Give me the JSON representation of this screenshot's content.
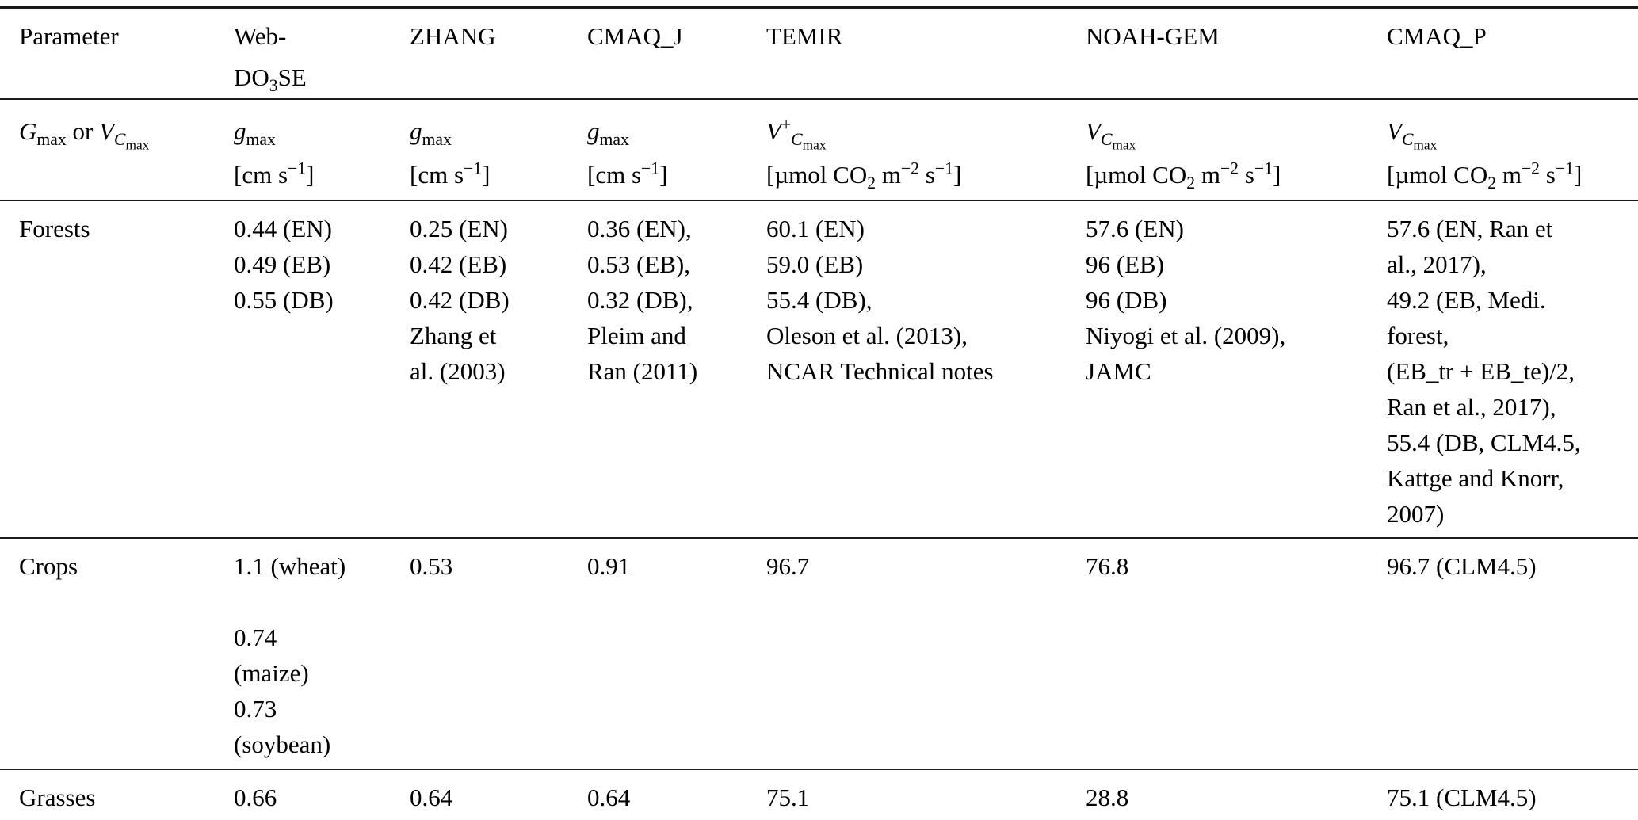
{
  "colors": {
    "text": "#000000",
    "background": "#ffffff",
    "rule": "#1a1a1a"
  },
  "table": {
    "header": [
      "Parameter",
      "Web-\nDO_{3}SE",
      "ZHANG",
      "CMAQ_J",
      "TEMIR",
      "NOAH-GEM",
      "CMAQ_P"
    ],
    "units": [
      "/{G}_{max} or /{V}_{/{C}_{max}}",
      "/{g}_{max}\n[cm s^{−1}]",
      "/{g}_{max}\n[cm s^{−1}]",
      "/{g}_{max}\n[cm s^{−1}]",
      "/{V}^{+}_{/{C}_{max}}\n[µmol CO_{2} m^{−2} s^{−1}]",
      "/{V}_{/{C}_{max}}\n[µmol CO_{2} m^{−2} s^{−1}]",
      "/{V}_{/{C}_{max}}\n[µmol CO_{2} m^{−2} s^{−1}]"
    ],
    "rows": [
      {
        "label": "Forests",
        "cells": [
          "0.44 (EN)\n0.49 (EB)\n0.55 (DB)",
          "0.25 (EN)\n0.42 (EB)\n0.42 (DB)\nZhang et\nal. (2003)",
          "0.36 (EN),\n0.53 (EB),\n0.32 (DB),\nPleim and\nRan (2011)",
          "60.1 (EN)\n59.0 (EB)\n55.4 (DB),\nOleson et al. (2013),\nNCAR Technical notes",
          "57.6 (EN)\n96 (EB)\n96 (DB)\nNiyogi et al. (2009),\nJAMC",
          "57.6 (EN, Ran et\nal., 2017),\n49.2 (EB, Medi.\nforest,\n(EB_tr + EB_te)/2,\nRan et al., 2017),\n55.4 (DB, CLM4.5,\nKattge and Knorr,\n2007)"
        ]
      },
      {
        "label": "Crops",
        "cells": [
          "1.1 (wheat)\n\n0.74\n(maize)\n0.73\n(soybean)",
          "0.53",
          "0.91",
          "96.7",
          "76.8",
          "96.7 (CLM4.5)"
        ]
      },
      {
        "label": "Grasses",
        "cells": [
          "0.66",
          "0.64",
          "0.64",
          "75.1",
          "28.8",
          "75.1 (CLM4.5)"
        ]
      }
    ]
  }
}
